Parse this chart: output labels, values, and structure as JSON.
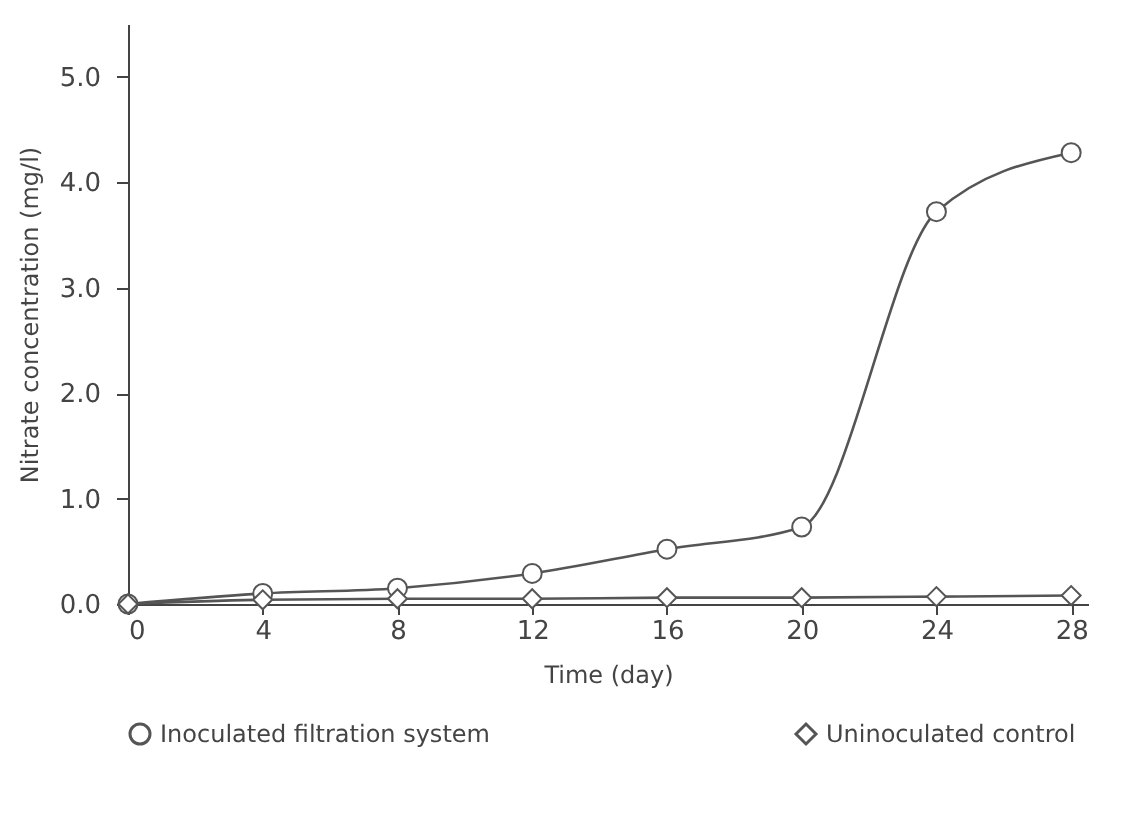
{
  "chart_data": {
    "type": "line",
    "xlabel": "Time (day)",
    "ylabel": "Nitrate concentration (mg/l)",
    "x": [
      0,
      4,
      8,
      12,
      16,
      20,
      24,
      28
    ],
    "series": [
      {
        "name": "Inoculated filtration system",
        "color": "#555555",
        "marker": "circle",
        "values": [
          0,
          0.1,
          0.15,
          0.29,
          0.52,
          0.73,
          3.72,
          4.28
        ]
      },
      {
        "name": "Uninoculated control",
        "color": "#555555",
        "marker": "diamond",
        "values": [
          0,
          0.04,
          0.05,
          0.05,
          0.06,
          0.06,
          0.07,
          0.08
        ]
      }
    ],
    "xlim": [
      0,
      28.5
    ],
    "xticks": [
      0,
      4,
      8,
      12,
      16,
      20,
      24,
      28
    ],
    "ylim": [
      0,
      5.5
    ],
    "yticks": [
      {
        "value": 0,
        "label": "0.0"
      },
      {
        "value": 1,
        "label": "1.0"
      },
      {
        "value": 2,
        "label": "2.0"
      },
      {
        "value": 3,
        "label": "3.0"
      },
      {
        "value": 4,
        "label": "4.0"
      },
      {
        "value": 5,
        "label": "5.0"
      }
    ],
    "grid": false,
    "legend": "bottom",
    "line_style": "solid"
  }
}
